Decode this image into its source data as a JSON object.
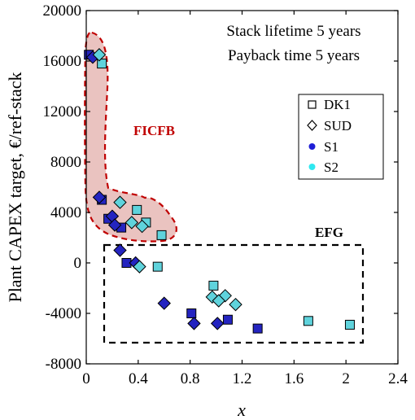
{
  "chart_data": {
    "type": "scatter",
    "xlabel": "x",
    "ylabel": "Plant CAPEX target, €/ref-stack",
    "xlim": [
      0,
      2.4
    ],
    "ylim": [
      -8000,
      20000
    ],
    "x_ticks": [
      0,
      0.4,
      0.8,
      1.2,
      1.6,
      2,
      2.4
    ],
    "y_ticks": [
      -8000,
      -4000,
      0,
      4000,
      8000,
      12000,
      16000,
      20000
    ],
    "x_tick_labels": [
      "0",
      "0.4",
      "0.8",
      "1.2",
      "1.6",
      "2",
      "2.4"
    ],
    "y_tick_labels": [
      "-8000",
      "-4000",
      "0",
      "4000",
      "8000",
      "12000",
      "16000",
      "20000"
    ],
    "grid": false,
    "annotations": [
      "Stack lifetime 5 years",
      "Payback time 5 years"
    ],
    "legend": {
      "placement": "right",
      "entries": [
        {
          "label": "DK1",
          "marker": "square-open"
        },
        {
          "label": "SUD",
          "marker": "diamond-open"
        },
        {
          "label": "S1",
          "marker": "dot",
          "color": "#1f1fd6"
        },
        {
          "label": "S2",
          "marker": "dot",
          "color": "#2ee8f0"
        }
      ]
    },
    "regions": [
      {
        "label": "FICFB",
        "style": "dashed shaded",
        "color": "#c00000",
        "fill": "#eac3c0"
      },
      {
        "label": "EFG",
        "style": "dashed box",
        "color": "#000000"
      }
    ],
    "colors": {
      "S1": "#2424c0",
      "S2": "#5fd3dc",
      "FICFB": "#c00000"
    },
    "series": [
      {
        "name": "DK1 / S1",
        "marker": "square",
        "color": "#2424c0",
        "points": [
          [
            0.02,
            16500
          ],
          [
            0.12,
            5000
          ],
          [
            0.17,
            3500
          ],
          [
            0.27,
            2800
          ],
          [
            0.31,
            0
          ],
          [
            0.81,
            -4000
          ],
          [
            1.09,
            -4500
          ],
          [
            1.32,
            -5200
          ]
        ]
      },
      {
        "name": "DK1 / S2",
        "marker": "square",
        "color": "#5fd3dc",
        "points": [
          [
            0.12,
            15800
          ],
          [
            0.39,
            4200
          ],
          [
            0.46,
            3200
          ],
          [
            0.58,
            2200
          ],
          [
            0.55,
            -300
          ],
          [
            0.98,
            -1800
          ],
          [
            1.71,
            -4600
          ],
          [
            2.03,
            -4900
          ]
        ]
      },
      {
        "name": "SUD / S1",
        "marker": "diamond",
        "color": "#2424c0",
        "points": [
          [
            0.05,
            16300
          ],
          [
            0.1,
            5200
          ],
          [
            0.2,
            3700
          ],
          [
            0.22,
            3000
          ],
          [
            0.26,
            1000
          ],
          [
            0.38,
            0
          ],
          [
            0.6,
            -3200
          ],
          [
            0.83,
            -4800
          ],
          [
            1.01,
            -4800
          ]
        ]
      },
      {
        "name": "SUD / S2",
        "marker": "diamond",
        "color": "#5fd3dc",
        "points": [
          [
            0.1,
            16500
          ],
          [
            0.26,
            4800
          ],
          [
            0.35,
            3200
          ],
          [
            0.43,
            2900
          ],
          [
            0.41,
            -300
          ],
          [
            0.97,
            -2700
          ],
          [
            1.07,
            -2600
          ],
          [
            1.15,
            -3300
          ],
          [
            1.02,
            -3000
          ]
        ]
      }
    ]
  }
}
